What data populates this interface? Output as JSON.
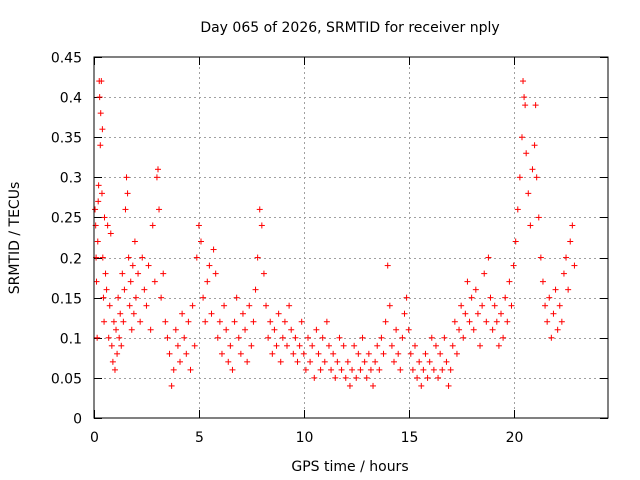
{
  "chart_data": {
    "type": "scatter",
    "title": "Day 065 of 2026, SRMTID for receiver nply",
    "xlabel": "GPS time / hours",
    "ylabel": "SRMTID / TECUs",
    "xlim": [
      0,
      24.5
    ],
    "ylim": [
      0,
      0.45
    ],
    "x_ticks": [
      0,
      5,
      10,
      15,
      20
    ],
    "x_tick_labels": [
      "0",
      "5",
      "10",
      "15",
      "20"
    ],
    "y_ticks": [
      0,
      0.05,
      0.1,
      0.15,
      0.2,
      0.25,
      0.3,
      0.35,
      0.4,
      0.45
    ],
    "y_tick_labels": [
      "0",
      "0.05",
      "0.1",
      "0.15",
      "0.2",
      "0.25",
      "0.3",
      "0.35",
      "0.4",
      "0.45"
    ],
    "grid": true,
    "marker": "+",
    "marker_color": "#ff0000",
    "series": [
      {
        "name": "SRMTID",
        "points": [
          [
            0.05,
            0.26
          ],
          [
            0.08,
            0.24
          ],
          [
            0.1,
            0.2
          ],
          [
            0.12,
            0.17
          ],
          [
            0.15,
            0.1
          ],
          [
            0.18,
            0.22
          ],
          [
            0.2,
            0.27
          ],
          [
            0.22,
            0.29
          ],
          [
            0.25,
            0.42
          ],
          [
            0.27,
            0.4
          ],
          [
            0.3,
            0.34
          ],
          [
            0.32,
            0.38
          ],
          [
            0.35,
            0.42
          ],
          [
            0.38,
            0.28
          ],
          [
            0.4,
            0.36
          ],
          [
            0.42,
            0.2
          ],
          [
            0.45,
            0.15
          ],
          [
            0.48,
            0.12
          ],
          [
            0.5,
            0.25
          ],
          [
            0.55,
            0.18
          ],
          [
            0.6,
            0.16
          ],
          [
            0.65,
            0.24
          ],
          [
            0.7,
            0.1
          ],
          [
            0.75,
            0.14
          ],
          [
            0.8,
            0.23
          ],
          [
            0.85,
            0.09
          ],
          [
            0.9,
            0.07
          ],
          [
            0.95,
            0.12
          ],
          [
            1.0,
            0.06
          ],
          [
            1.05,
            0.11
          ],
          [
            1.1,
            0.08
          ],
          [
            1.15,
            0.15
          ],
          [
            1.2,
            0.1
          ],
          [
            1.25,
            0.13
          ],
          [
            1.3,
            0.09
          ],
          [
            1.35,
            0.18
          ],
          [
            1.4,
            0.12
          ],
          [
            1.45,
            0.16
          ],
          [
            1.5,
            0.26
          ],
          [
            1.55,
            0.3
          ],
          [
            1.6,
            0.28
          ],
          [
            1.65,
            0.2
          ],
          [
            1.7,
            0.14
          ],
          [
            1.75,
            0.17
          ],
          [
            1.8,
            0.11
          ],
          [
            1.85,
            0.19
          ],
          [
            1.9,
            0.13
          ],
          [
            1.95,
            0.22
          ],
          [
            2.0,
            0.15
          ],
          [
            2.1,
            0.18
          ],
          [
            2.2,
            0.12
          ],
          [
            2.3,
            0.2
          ],
          [
            2.4,
            0.16
          ],
          [
            2.5,
            0.14
          ],
          [
            2.6,
            0.19
          ],
          [
            2.7,
            0.11
          ],
          [
            2.8,
            0.24
          ],
          [
            2.9,
            0.17
          ],
          [
            3.0,
            0.3
          ],
          [
            3.05,
            0.31
          ],
          [
            3.1,
            0.26
          ],
          [
            3.2,
            0.15
          ],
          [
            3.3,
            0.18
          ],
          [
            3.4,
            0.12
          ],
          [
            3.5,
            0.1
          ],
          [
            3.6,
            0.08
          ],
          [
            3.7,
            0.04
          ],
          [
            3.8,
            0.06
          ],
          [
            3.9,
            0.11
          ],
          [
            4.0,
            0.09
          ],
          [
            4.1,
            0.07
          ],
          [
            4.2,
            0.13
          ],
          [
            4.3,
            0.1
          ],
          [
            4.4,
            0.08
          ],
          [
            4.5,
            0.12
          ],
          [
            4.6,
            0.06
          ],
          [
            4.7,
            0.14
          ],
          [
            4.8,
            0.09
          ],
          [
            4.9,
            0.2
          ],
          [
            5.0,
            0.24
          ],
          [
            5.1,
            0.22
          ],
          [
            5.2,
            0.15
          ],
          [
            5.3,
            0.12
          ],
          [
            5.4,
            0.17
          ],
          [
            5.5,
            0.19
          ],
          [
            5.6,
            0.13
          ],
          [
            5.7,
            0.21
          ],
          [
            5.8,
            0.18
          ],
          [
            5.9,
            0.1
          ],
          [
            6.0,
            0.12
          ],
          [
            6.1,
            0.08
          ],
          [
            6.2,
            0.14
          ],
          [
            6.3,
            0.11
          ],
          [
            6.4,
            0.07
          ],
          [
            6.5,
            0.09
          ],
          [
            6.6,
            0.06
          ],
          [
            6.7,
            0.12
          ],
          [
            6.8,
            0.15
          ],
          [
            6.9,
            0.1
          ],
          [
            7.0,
            0.08
          ],
          [
            7.1,
            0.13
          ],
          [
            7.2,
            0.11
          ],
          [
            7.3,
            0.07
          ],
          [
            7.4,
            0.14
          ],
          [
            7.5,
            0.09
          ],
          [
            7.6,
            0.12
          ],
          [
            7.7,
            0.16
          ],
          [
            7.8,
            0.2
          ],
          [
            7.9,
            0.26
          ],
          [
            8.0,
            0.24
          ],
          [
            8.1,
            0.18
          ],
          [
            8.2,
            0.14
          ],
          [
            8.3,
            0.1
          ],
          [
            8.4,
            0.12
          ],
          [
            8.5,
            0.08
          ],
          [
            8.6,
            0.11
          ],
          [
            8.7,
            0.09
          ],
          [
            8.8,
            0.13
          ],
          [
            8.9,
            0.07
          ],
          [
            9.0,
            0.1
          ],
          [
            9.1,
            0.12
          ],
          [
            9.2,
            0.09
          ],
          [
            9.3,
            0.14
          ],
          [
            9.4,
            0.11
          ],
          [
            9.5,
            0.08
          ],
          [
            9.6,
            0.1
          ],
          [
            9.7,
            0.07
          ],
          [
            9.8,
            0.09
          ],
          [
            9.9,
            0.12
          ],
          [
            10.0,
            0.08
          ],
          [
            10.1,
            0.06
          ],
          [
            10.2,
            0.1
          ],
          [
            10.3,
            0.07
          ],
          [
            10.4,
            0.09
          ],
          [
            10.5,
            0.05
          ],
          [
            10.6,
            0.11
          ],
          [
            10.7,
            0.08
          ],
          [
            10.8,
            0.06
          ],
          [
            10.9,
            0.1
          ],
          [
            11.0,
            0.07
          ],
          [
            11.1,
            0.12
          ],
          [
            11.2,
            0.09
          ],
          [
            11.3,
            0.06
          ],
          [
            11.4,
            0.08
          ],
          [
            11.5,
            0.05
          ],
          [
            11.6,
            0.07
          ],
          [
            11.7,
            0.1
          ],
          [
            11.8,
            0.06
          ],
          [
            11.9,
            0.09
          ],
          [
            12.0,
            0.05
          ],
          [
            12.1,
            0.07
          ],
          [
            12.2,
            0.04
          ],
          [
            12.3,
            0.06
          ],
          [
            12.4,
            0.09
          ],
          [
            12.5,
            0.05
          ],
          [
            12.6,
            0.08
          ],
          [
            12.7,
            0.06
          ],
          [
            12.8,
            0.1
          ],
          [
            12.9,
            0.07
          ],
          [
            13.0,
            0.05
          ],
          [
            13.1,
            0.08
          ],
          [
            13.2,
            0.06
          ],
          [
            13.3,
            0.04
          ],
          [
            13.4,
            0.07
          ],
          [
            13.5,
            0.09
          ],
          [
            13.6,
            0.06
          ],
          [
            13.7,
            0.1
          ],
          [
            13.8,
            0.08
          ],
          [
            13.9,
            0.12
          ],
          [
            14.0,
            0.19
          ],
          [
            14.1,
            0.14
          ],
          [
            14.2,
            0.09
          ],
          [
            14.3,
            0.07
          ],
          [
            14.4,
            0.11
          ],
          [
            14.5,
            0.08
          ],
          [
            14.6,
            0.06
          ],
          [
            14.7,
            0.1
          ],
          [
            14.8,
            0.13
          ],
          [
            14.9,
            0.15
          ],
          [
            15.0,
            0.11
          ],
          [
            15.1,
            0.08
          ],
          [
            15.2,
            0.06
          ],
          [
            15.3,
            0.09
          ],
          [
            15.4,
            0.05
          ],
          [
            15.5,
            0.07
          ],
          [
            15.6,
            0.04
          ],
          [
            15.7,
            0.06
          ],
          [
            15.8,
            0.08
          ],
          [
            15.9,
            0.05
          ],
          [
            16.0,
            0.07
          ],
          [
            16.1,
            0.1
          ],
          [
            16.2,
            0.06
          ],
          [
            16.3,
            0.09
          ],
          [
            16.4,
            0.05
          ],
          [
            16.5,
            0.08
          ],
          [
            16.6,
            0.06
          ],
          [
            16.7,
            0.1
          ],
          [
            16.8,
            0.07
          ],
          [
            16.9,
            0.04
          ],
          [
            17.0,
            0.06
          ],
          [
            17.1,
            0.09
          ],
          [
            17.2,
            0.12
          ],
          [
            17.3,
            0.08
          ],
          [
            17.4,
            0.11
          ],
          [
            17.5,
            0.14
          ],
          [
            17.6,
            0.1
          ],
          [
            17.7,
            0.13
          ],
          [
            17.8,
            0.17
          ],
          [
            17.9,
            0.12
          ],
          [
            18.0,
            0.15
          ],
          [
            18.1,
            0.11
          ],
          [
            18.2,
            0.16
          ],
          [
            18.3,
            0.13
          ],
          [
            18.4,
            0.09
          ],
          [
            18.5,
            0.14
          ],
          [
            18.6,
            0.18
          ],
          [
            18.7,
            0.12
          ],
          [
            18.8,
            0.2
          ],
          [
            18.9,
            0.15
          ],
          [
            19.0,
            0.11
          ],
          [
            19.1,
            0.14
          ],
          [
            19.2,
            0.12
          ],
          [
            19.3,
            0.09
          ],
          [
            19.4,
            0.13
          ],
          [
            19.5,
            0.1
          ],
          [
            19.6,
            0.15
          ],
          [
            19.7,
            0.12
          ],
          [
            19.8,
            0.17
          ],
          [
            19.9,
            0.14
          ],
          [
            20.0,
            0.19
          ],
          [
            20.1,
            0.22
          ],
          [
            20.2,
            0.26
          ],
          [
            20.3,
            0.3
          ],
          [
            20.4,
            0.35
          ],
          [
            20.45,
            0.42
          ],
          [
            20.5,
            0.4
          ],
          [
            20.55,
            0.39
          ],
          [
            20.6,
            0.33
          ],
          [
            20.7,
            0.28
          ],
          [
            20.8,
            0.24
          ],
          [
            20.9,
            0.31
          ],
          [
            21.0,
            0.34
          ],
          [
            21.05,
            0.39
          ],
          [
            21.1,
            0.3
          ],
          [
            21.2,
            0.25
          ],
          [
            21.3,
            0.2
          ],
          [
            21.4,
            0.17
          ],
          [
            21.5,
            0.14
          ],
          [
            21.6,
            0.12
          ],
          [
            21.7,
            0.15
          ],
          [
            21.8,
            0.1
          ],
          [
            21.9,
            0.13
          ],
          [
            22.0,
            0.16
          ],
          [
            22.1,
            0.11
          ],
          [
            22.2,
            0.14
          ],
          [
            22.3,
            0.12
          ],
          [
            22.4,
            0.18
          ],
          [
            22.5,
            0.2
          ],
          [
            22.6,
            0.16
          ],
          [
            22.7,
            0.22
          ],
          [
            22.8,
            0.24
          ],
          [
            22.9,
            0.19
          ]
        ]
      }
    ]
  }
}
